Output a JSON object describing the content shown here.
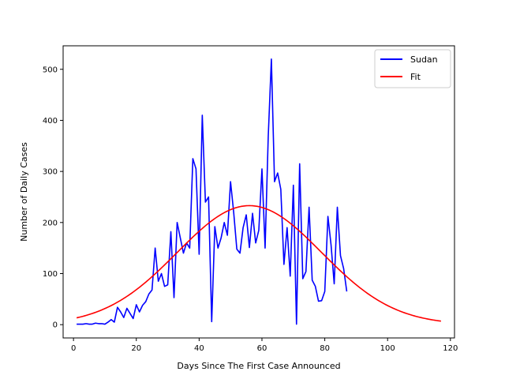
{
  "chart_data": {
    "type": "line",
    "title": "",
    "xlabel": "Days Since The First Case Announced",
    "ylabel": "Number of Daily Cases",
    "xlim": [
      -3.3,
      121.3
    ],
    "ylim": [
      -26,
      546
    ],
    "xticks": [
      0,
      20,
      40,
      60,
      80,
      100,
      120
    ],
    "yticks": [
      0,
      100,
      200,
      300,
      400,
      500
    ],
    "grid": false,
    "legend_position": "top-right",
    "series": [
      {
        "name": "Sudan",
        "color": "#0000ff",
        "x": [
          1,
          2,
          3,
          4,
          5,
          6,
          7,
          8,
          9,
          10,
          11,
          12,
          13,
          14,
          15,
          16,
          17,
          18,
          19,
          20,
          21,
          22,
          23,
          24,
          25,
          26,
          27,
          28,
          29,
          30,
          31,
          32,
          33,
          34,
          35,
          36,
          37,
          38,
          39,
          40,
          41,
          42,
          43,
          44,
          45,
          46,
          47,
          48,
          49,
          50,
          51,
          52,
          53,
          54,
          55,
          56,
          57,
          58,
          59,
          60,
          61,
          62,
          63,
          64,
          65,
          66,
          67,
          68,
          69,
          70,
          71,
          72,
          73,
          74,
          75,
          76,
          77,
          78,
          79,
          80,
          81,
          82,
          83,
          84,
          85,
          86,
          87
        ],
        "y": [
          1,
          1,
          1,
          2,
          1,
          1,
          3,
          2,
          2,
          1,
          5,
          10,
          5,
          34,
          25,
          14,
          32,
          22,
          12,
          39,
          25,
          38,
          45,
          60,
          68,
          150,
          85,
          100,
          75,
          78,
          182,
          53,
          200,
          170,
          140,
          160,
          150,
          325,
          305,
          138,
          410,
          240,
          250,
          6,
          192,
          150,
          170,
          200,
          175,
          280,
          220,
          148,
          140,
          190,
          215,
          151,
          218,
          160,
          185,
          305,
          150,
          368,
          520,
          280,
          297,
          265,
          118,
          190,
          95,
          273,
          1,
          315,
          90,
          104,
          230,
          87,
          75,
          46,
          47,
          65,
          212,
          156,
          80,
          230,
          135,
          110,
          65
        ]
      },
      {
        "name": "Fit",
        "color": "#ff0000",
        "function": "233 * exp(-(x - 56)^2 / (2 * 23^2))",
        "x_range": [
          1,
          117
        ],
        "peak": {
          "x": 56,
          "y": 233
        }
      }
    ]
  }
}
